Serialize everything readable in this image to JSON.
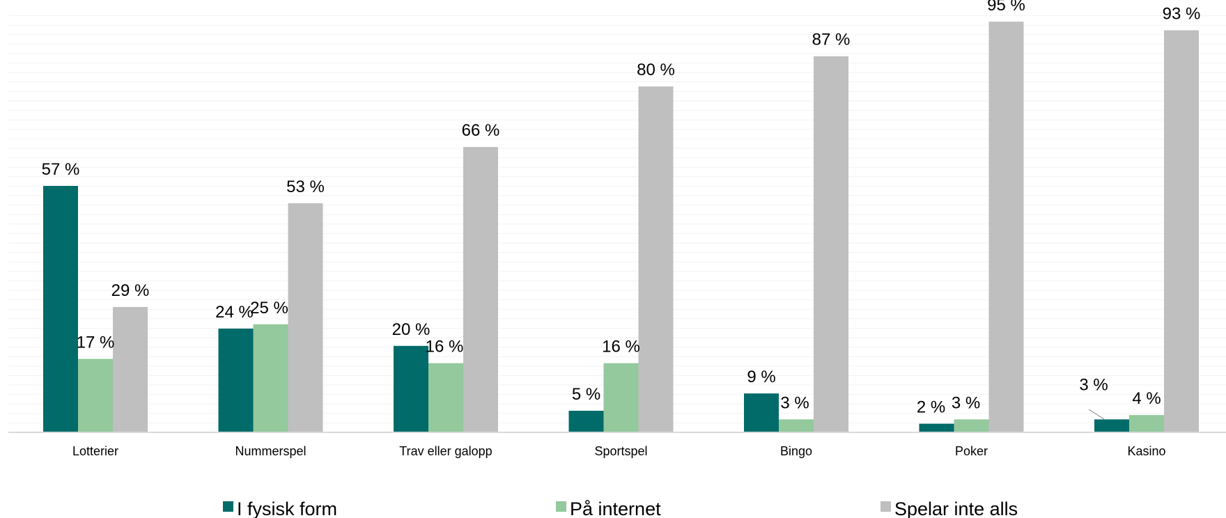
{
  "chart_data": {
    "type": "bar",
    "categories": [
      "Lotterier",
      "Nummerspel",
      "Trav eller galopp",
      "Sportspel",
      "Bingo",
      "Poker",
      "Kasino"
    ],
    "series": [
      {
        "name": "I fysisk form",
        "color": "#006b68",
        "values": [
          57,
          24,
          20,
          5,
          9,
          2,
          3
        ],
        "labels": [
          "57 %",
          "24 %",
          "20 %",
          "5 %",
          "9 %",
          "2 %",
          "3 %"
        ]
      },
      {
        "name": "På internet",
        "color": "#93c99d",
        "values": [
          17,
          25,
          16,
          16,
          3,
          3,
          4
        ],
        "labels": [
          "17 %",
          "25 %",
          "16 %",
          "16 %",
          "3 %",
          "3 %",
          "4 %"
        ]
      },
      {
        "name": "Spelar inte alls",
        "color": "#bfbfbf",
        "values": [
          29,
          53,
          66,
          80,
          87,
          95,
          93
        ],
        "labels": [
          "29 %",
          "53 %",
          "66 %",
          "80 %",
          "87 %",
          "95 %",
          "93 %"
        ]
      }
    ],
    "ylim": [
      0,
      100
    ],
    "grid": true,
    "legend_position": "bottom"
  }
}
